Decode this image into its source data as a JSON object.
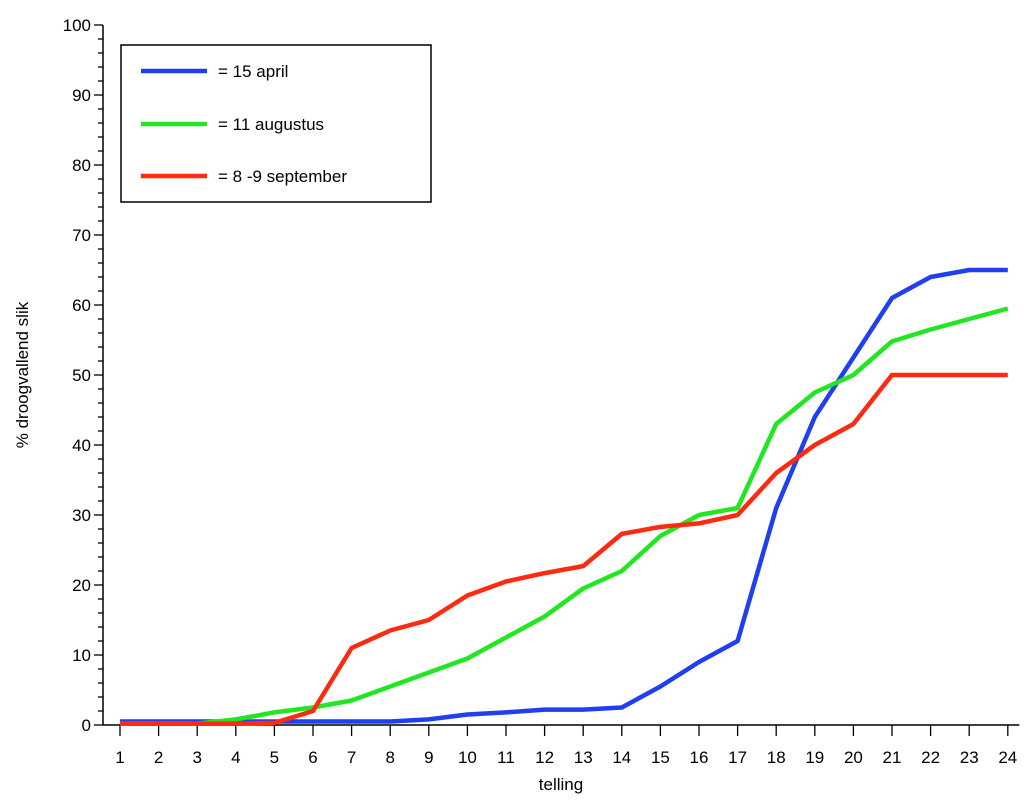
{
  "chart_data": {
    "type": "line",
    "xlabel": "telling",
    "ylabel": "% droogvallend slik",
    "x": [
      1,
      2,
      3,
      4,
      5,
      6,
      7,
      8,
      9,
      10,
      11,
      12,
      13,
      14,
      15,
      16,
      17,
      18,
      19,
      20,
      21,
      22,
      23,
      24
    ],
    "xlim": [
      0.5,
      24.3
    ],
    "ylim": [
      0,
      100
    ],
    "yticks": [
      0,
      10,
      20,
      30,
      40,
      50,
      60,
      70,
      80,
      90,
      100
    ],
    "grid": false,
    "legend_position": "top-left",
    "series": [
      {
        "name": "= 15 april",
        "color": "#1f3ff0",
        "values": [
          0.5,
          0.5,
          0.5,
          0.5,
          0.5,
          0.5,
          0.5,
          0.5,
          0.8,
          1.5,
          1.8,
          2.2,
          2.2,
          2.5,
          5.5,
          9.0,
          12.0,
          31.0,
          44.0,
          52.5,
          61.0,
          64.0,
          65.0,
          65.0
        ]
      },
      {
        "name": "= 11 augustus",
        "color": "#22e622",
        "values": [
          0.2,
          0.2,
          0.2,
          0.8,
          1.8,
          2.5,
          3.5,
          5.5,
          7.5,
          9.5,
          12.5,
          15.5,
          19.5,
          22.0,
          27.0,
          30.0,
          31.0,
          43.0,
          47.5,
          50.0,
          54.8,
          56.5,
          58.0,
          59.5
        ]
      },
      {
        "name": "= 8 -9 september",
        "color": "#ff2a12",
        "values": [
          0.2,
          0.2,
          0.2,
          0.2,
          0.3,
          2.0,
          11.0,
          13.5,
          15.0,
          18.5,
          20.5,
          21.7,
          22.7,
          27.3,
          28.3,
          28.8,
          30.0,
          36.0,
          40.0,
          43.0,
          50.0,
          50.0,
          50.0,
          50.0
        ]
      }
    ]
  }
}
